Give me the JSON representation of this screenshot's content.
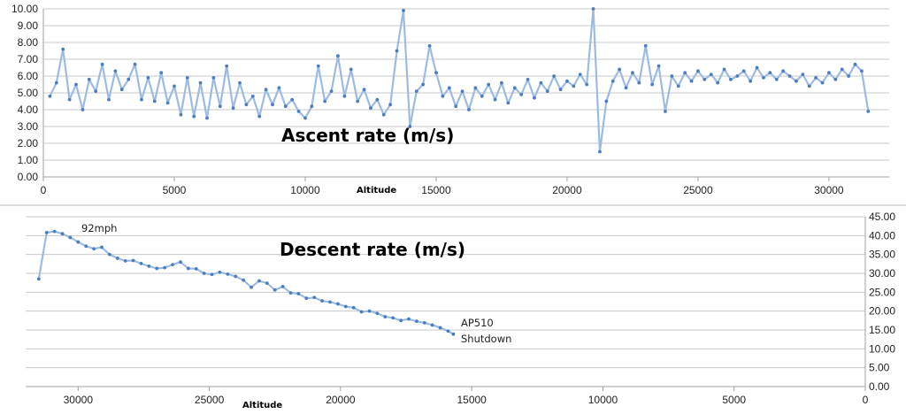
{
  "chart_data": [
    {
      "type": "line",
      "title": "Ascent rate (m/s)",
      "xlabel": "Altitude",
      "ylabel": "",
      "xlim": [
        0,
        32300
      ],
      "ylim": [
        0,
        10
      ],
      "xticks": [
        0,
        5000,
        10000,
        15000,
        20000,
        25000,
        30000
      ],
      "yticks": [
        "0.00",
        "1.00",
        "2.00",
        "3.00",
        "4.00",
        "5.00",
        "6.00",
        "7.00",
        "8.00",
        "9.00",
        "10.00"
      ],
      "grid": true,
      "series": [
        {
          "name": "Ascent rate",
          "x_start": 250,
          "x_step": 250,
          "values": [
            4.8,
            5.6,
            7.6,
            4.6,
            5.5,
            4.0,
            5.8,
            5.1,
            6.7,
            4.6,
            6.3,
            5.2,
            5.8,
            6.7,
            4.6,
            5.9,
            4.5,
            6.2,
            4.4,
            5.4,
            3.7,
            5.9,
            3.6,
            5.6,
            3.5,
            5.9,
            4.2,
            6.6,
            4.1,
            5.6,
            4.3,
            4.8,
            3.6,
            5.2,
            4.3,
            5.3,
            4.2,
            4.6,
            3.9,
            3.5,
            4.2,
            6.6,
            4.5,
            5.1,
            7.2,
            4.8,
            6.4,
            4.5,
            5.2,
            4.1,
            4.6,
            3.7,
            4.3,
            7.5,
            9.9,
            3.0,
            5.1,
            5.5,
            7.8,
            6.2,
            4.8,
            5.3,
            4.2,
            5.1,
            4.0,
            5.3,
            4.8,
            5.5,
            4.6,
            5.6,
            4.4,
            5.3,
            4.9,
            5.8,
            4.7,
            5.6,
            5.1,
            6.0,
            5.2,
            5.7,
            5.4,
            6.1,
            5.5,
            10.0,
            1.5,
            4.5,
            5.7,
            6.4,
            5.3,
            6.2,
            5.6,
            7.8,
            5.5,
            6.6,
            3.9,
            6.0,
            5.4,
            6.2,
            5.7,
            6.3,
            5.8,
            6.1,
            5.6,
            6.4,
            5.8,
            6.0,
            6.3,
            5.7,
            6.5,
            5.9,
            6.2,
            5.8,
            6.3,
            6.0,
            5.7,
            6.1,
            5.4,
            5.9,
            5.6,
            6.2,
            5.8,
            6.4,
            6.0,
            6.7,
            6.3,
            3.9
          ]
        }
      ],
      "annotations": []
    },
    {
      "type": "line",
      "title": "Descent rate (m/s)",
      "xlabel": "Altitude",
      "ylabel": "",
      "xlim": [
        32000,
        0
      ],
      "ylim": [
        0,
        45
      ],
      "xticks": [
        30000,
        25000,
        20000,
        15000,
        10000,
        5000,
        0
      ],
      "yticks": [
        "0.00",
        "5.00",
        "10.00",
        "15.00",
        "20.00",
        "25.00",
        "30.00",
        "35.00",
        "40.00",
        "45.00"
      ],
      "y_axis_side": "right",
      "grid": true,
      "series": [
        {
          "name": "Descent rate",
          "x": [
            31500,
            31200,
            30900,
            30600,
            30300,
            30000,
            29700,
            29400,
            29100,
            28800,
            28500,
            28200,
            27900,
            27600,
            27300,
            27000,
            26700,
            26400,
            26100,
            25800,
            25500,
            25200,
            24900,
            24600,
            24300,
            24000,
            23700,
            23400,
            23100,
            22800,
            22500,
            22200,
            21900,
            21600,
            21300,
            21000,
            20700,
            20400,
            20100,
            19800,
            19500,
            19200,
            18900,
            18600,
            18300,
            18000,
            17700,
            17400,
            17100,
            16800,
            16500,
            16200,
            15900,
            15700
          ],
          "values": [
            28.5,
            40.8,
            41.1,
            40.5,
            39.5,
            38.3,
            37.2,
            36.5,
            36.9,
            35.0,
            34.0,
            33.3,
            33.4,
            32.6,
            31.9,
            31.3,
            31.5,
            32.3,
            33.0,
            31.3,
            31.2,
            30.0,
            29.7,
            30.3,
            29.8,
            29.2,
            28.2,
            26.3,
            28.0,
            27.4,
            25.6,
            26.5,
            24.8,
            24.6,
            23.4,
            23.6,
            22.7,
            22.4,
            21.9,
            21.2,
            20.9,
            19.8,
            20.0,
            19.4,
            18.5,
            18.2,
            17.5,
            17.9,
            17.3,
            16.9,
            16.3,
            15.6,
            14.7,
            13.9
          ]
        }
      ],
      "annotations": [
        "92mph",
        "AP510",
        "Shutdown"
      ]
    }
  ],
  "colors": {
    "line": "#9dbbe0",
    "marker": "#4a7ebf",
    "grid": "#c8c8c8",
    "axis": "#a0a0a0"
  }
}
